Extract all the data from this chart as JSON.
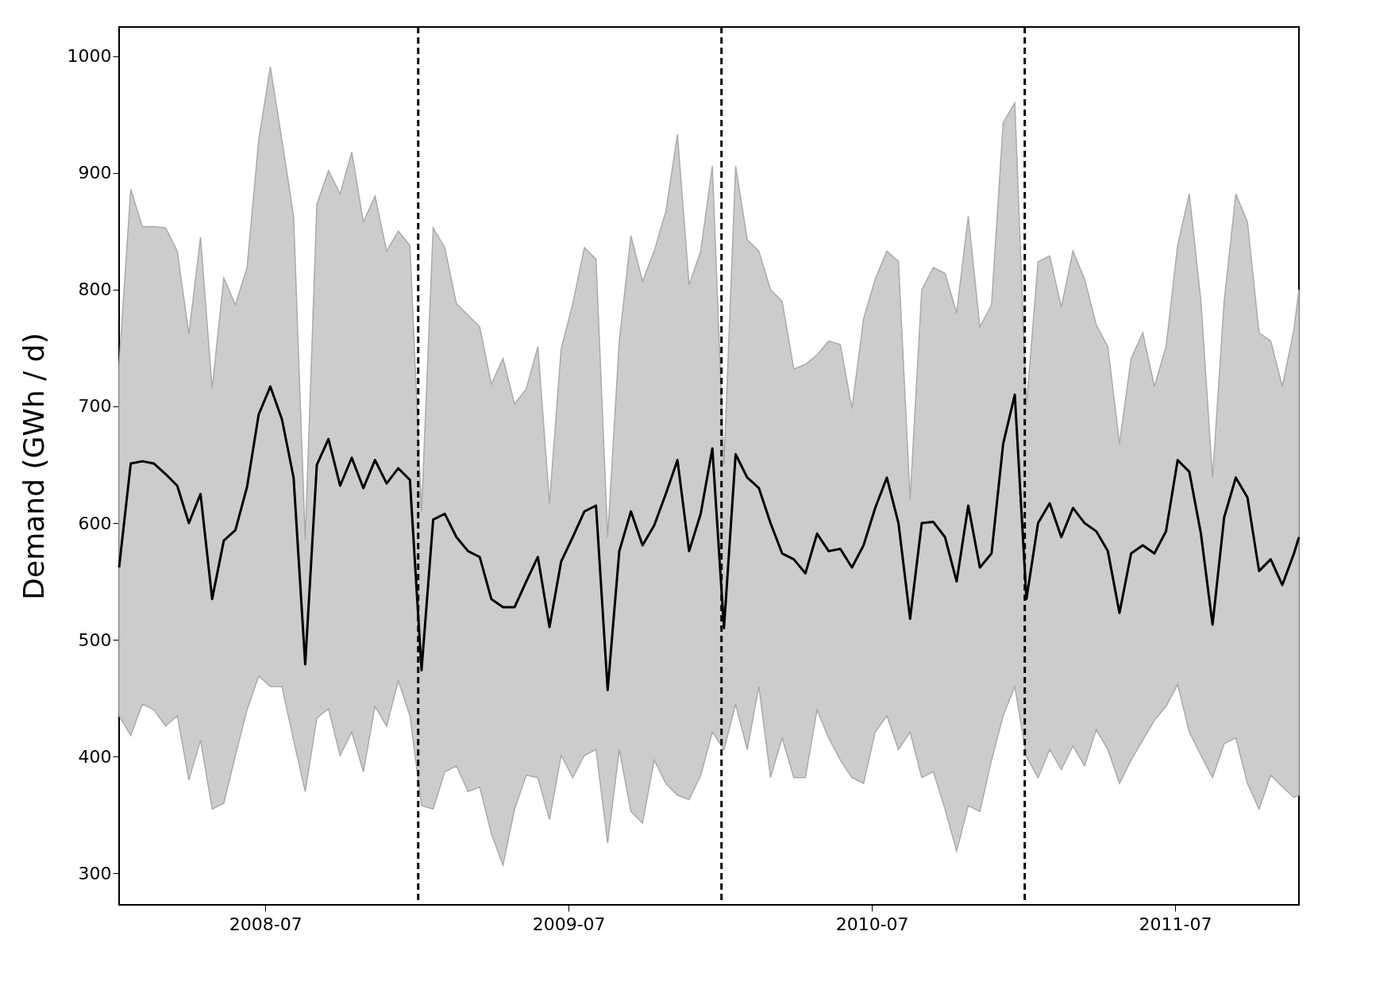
{
  "chart_data": {
    "type": "line",
    "ylabel": "Demand (GWh / d)",
    "x": [
      "2008-01-07",
      "2008-01-21",
      "2008-02-04",
      "2008-02-18",
      "2008-03-03",
      "2008-03-17",
      "2008-03-31",
      "2008-04-14",
      "2008-04-28",
      "2008-05-12",
      "2008-05-26",
      "2008-06-09",
      "2008-06-23",
      "2008-07-07",
      "2008-07-21",
      "2008-08-04",
      "2008-08-18",
      "2008-09-01",
      "2008-09-15",
      "2008-09-29",
      "2008-10-13",
      "2008-10-27",
      "2008-11-10",
      "2008-11-24",
      "2008-12-08",
      "2008-12-22",
      "2009-01-05",
      "2009-01-19",
      "2009-02-02",
      "2009-02-16",
      "2009-03-02",
      "2009-03-16",
      "2009-03-30",
      "2009-04-13",
      "2009-04-27",
      "2009-05-11",
      "2009-05-25",
      "2009-06-08",
      "2009-06-22",
      "2009-07-06",
      "2009-07-20",
      "2009-08-03",
      "2009-08-17",
      "2009-08-31",
      "2009-09-14",
      "2009-09-28",
      "2009-10-12",
      "2009-10-26",
      "2009-11-09",
      "2009-11-23",
      "2009-12-07",
      "2009-12-21",
      "2010-01-04",
      "2010-01-18",
      "2010-02-01",
      "2010-02-15",
      "2010-03-01",
      "2010-03-15",
      "2010-03-29",
      "2010-04-12",
      "2010-04-26",
      "2010-05-10",
      "2010-05-24",
      "2010-06-07",
      "2010-06-21",
      "2010-07-05",
      "2010-07-19",
      "2010-08-02",
      "2010-08-16",
      "2010-08-30",
      "2010-09-13",
      "2010-09-27",
      "2010-10-11",
      "2010-10-25",
      "2010-11-08",
      "2010-11-22",
      "2010-12-06",
      "2010-12-20",
      "2011-01-03",
      "2011-01-17",
      "2011-01-31",
      "2011-02-14",
      "2011-02-28",
      "2011-03-14",
      "2011-03-28",
      "2011-04-11",
      "2011-04-25",
      "2011-05-09",
      "2011-05-23",
      "2011-06-06",
      "2011-06-20",
      "2011-07-04",
      "2011-07-18",
      "2011-08-01",
      "2011-08-15",
      "2011-08-29",
      "2011-09-12",
      "2011-09-26",
      "2011-10-10",
      "2011-10-24",
      "2011-11-07",
      "2011-11-21",
      "2011-11-27"
    ],
    "series": [
      {
        "color": "#000000",
        "values": [
          562,
          651,
          653,
          651,
          642,
          632,
          600,
          625,
          535,
          585,
          594,
          631,
          693,
          717,
          689,
          639,
          479,
          650,
          672,
          632,
          656,
          630,
          654,
          634,
          647,
          637,
          474,
          603,
          608,
          588,
          576,
          571,
          535,
          528,
          528,
          550,
          571,
          511,
          567,
          588,
          610,
          615,
          457,
          576,
          610,
          581,
          598,
          625,
          654,
          576,
          608,
          664,
          510,
          659,
          639,
          630,
          600,
          574,
          569,
          557,
          591,
          576,
          578,
          562,
          581,
          613,
          639,
          600,
          518,
          600,
          601,
          588,
          550,
          615,
          562,
          574,
          668,
          710,
          535,
          600,
          617,
          588,
          613,
          600,
          593,
          576,
          523,
          574,
          581,
          574,
          593,
          654,
          644,
          591,
          513,
          605,
          639,
          622,
          559,
          569,
          547,
          574,
          588
        ],
        "lower": [
          435,
          418,
          445,
          440,
          426,
          435,
          380,
          414,
          355,
          360,
          401,
          440,
          469,
          460,
          460,
          414,
          370,
          433,
          441,
          401,
          421,
          387,
          443,
          426,
          465,
          435,
          358,
          355,
          387,
          392,
          370,
          374,
          334,
          307,
          355,
          384,
          382,
          346,
          401,
          382,
          401,
          406,
          326,
          406,
          353,
          343,
          397,
          377,
          367,
          363,
          384,
          421,
          406,
          445,
          406,
          460,
          382,
          416,
          382,
          382,
          440,
          416,
          397,
          382,
          377,
          421,
          435,
          406,
          421,
          382,
          387,
          355,
          319,
          358,
          353,
          397,
          435,
          460,
          400,
          382,
          406,
          389,
          409,
          392,
          423,
          406,
          377,
          397,
          414,
          431,
          443,
          462,
          421,
          401,
          382,
          411,
          416,
          377,
          355,
          384,
          374,
          365,
          367
        ],
        "upper": [
          736,
          886,
          854,
          854,
          853,
          833,
          762,
          845,
          715,
          810,
          787,
          819,
          928,
          991,
          928,
          863,
          586,
          873,
          902,
          882,
          918,
          858,
          880,
          833,
          850,
          838,
          610,
          853,
          836,
          788,
          778,
          768,
          719,
          741,
          702,
          715,
          751,
          617,
          749,
          788,
          836,
          826,
          588,
          756,
          846,
          807,
          833,
          867,
          933,
          804,
          833,
          906,
          650,
          906,
          843,
          833,
          800,
          790,
          732,
          736,
          744,
          756,
          753,
          698,
          775,
          809,
          833,
          824,
          620,
          800,
          819,
          814,
          780,
          863,
          768,
          787,
          943,
          960,
          700,
          824,
          829,
          785,
          833,
          809,
          770,
          751,
          668,
          741,
          763,
          717,
          751,
          838,
          882,
          790,
          639,
          790,
          882,
          858,
          763,
          756,
          717,
          766,
          800
        ]
      }
    ],
    "xlim": [
      "2008-01-07",
      "2011-11-27"
    ],
    "xticks": [
      "2008-07",
      "2009-07",
      "2010-07",
      "2011-07"
    ],
    "ylim": [
      273,
      1025
    ],
    "yticks": [
      300,
      400,
      500,
      600,
      700,
      800,
      900,
      1000
    ],
    "ref_lines": [
      {
        "axis": "x",
        "value": "2009-01-01",
        "color": "#000000",
        "line_style": "dashed"
      },
      {
        "axis": "x",
        "value": "2010-01-01",
        "color": "#000000",
        "line_style": "dashed"
      },
      {
        "axis": "x",
        "value": "2011-01-01",
        "color": "#000000",
        "line_style": "dashed"
      }
    ],
    "grid": false,
    "line_style": "solid",
    "marker": "none"
  }
}
